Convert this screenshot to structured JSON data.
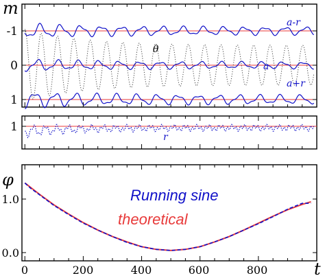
{
  "colors": {
    "primary": "#1010c8",
    "reference": "#e83a3a",
    "theta_curve": "#444444",
    "axes": "#000000",
    "background": "#ffffff"
  },
  "chart_data": [
    {
      "type": "line",
      "panel": "top",
      "ylabel": "m",
      "xlim": [
        -10,
        1000
      ],
      "ylim": [
        1.25,
        -1.25
      ],
      "y_inverted": true,
      "y_ticks": [
        -1,
        0,
        1
      ],
      "y_tick_labels": [
        "-1",
        "0",
        "1"
      ],
      "reference_lines_y": [
        -1,
        0,
        1
      ],
      "annotations": [
        "a-r",
        "θ",
        "a",
        "a+r"
      ],
      "series": [
        {
          "name": "a-r",
          "style": "solid",
          "color": "#1010c8",
          "baseline": -1,
          "amplitude": 0.18,
          "period": 70
        },
        {
          "name": "a",
          "style": "solid",
          "color": "#1010c8",
          "baseline": 0,
          "amplitude": 0.15,
          "period": 70
        },
        {
          "name": "a+r",
          "style": "solid",
          "color": "#1010c8",
          "baseline": 1,
          "amplitude": 0.2,
          "period": 70
        },
        {
          "name": "θ",
          "style": "dotted",
          "color": "#444444",
          "baseline": 0,
          "amplitude": 1.05,
          "period": 56
        }
      ]
    },
    {
      "type": "line",
      "panel": "middle",
      "ylim": [
        0.5,
        1.25
      ],
      "y_ticks": [
        1
      ],
      "y_tick_labels": [
        "1"
      ],
      "reference_lines_y": [
        1
      ],
      "annotations": [
        "r"
      ],
      "series": [
        {
          "name": "r",
          "style": "dotted",
          "color": "#1010c8",
          "baseline": 1,
          "amplitude": 0.12,
          "period": 40
        }
      ]
    },
    {
      "type": "line",
      "panel": "bottom",
      "ylabel": "φ",
      "xlabel": "t",
      "xlim": [
        -10,
        1000
      ],
      "ylim": [
        -0.1,
        1.45
      ],
      "x_ticks": [
        0,
        200,
        400,
        600,
        800
      ],
      "x_tick_labels": [
        "0",
        "200",
        "400",
        "600",
        "800"
      ],
      "y_ticks": [
        0,
        1
      ],
      "y_tick_labels": [
        "0.0",
        "1.0"
      ],
      "legend_labels": [
        "Running sine",
        "theoretical"
      ],
      "series": [
        {
          "name": "Running sine",
          "color": "#1010c8",
          "x": [
            0,
            20,
            40,
            60,
            80,
            100,
            150,
            200,
            250,
            300,
            350,
            400,
            450,
            500,
            550,
            600,
            650,
            700,
            750,
            800,
            850,
            900,
            950,
            980
          ],
          "y": [
            1.3,
            1.2,
            1.12,
            1.04,
            0.96,
            0.88,
            0.71,
            0.55,
            0.42,
            0.3,
            0.19,
            0.11,
            0.06,
            0.04,
            0.06,
            0.11,
            0.2,
            0.3,
            0.42,
            0.54,
            0.67,
            0.81,
            0.92,
            0.92
          ]
        },
        {
          "name": "theoretical",
          "color": "#e83a3a",
          "x": [
            0,
            50,
            100,
            150,
            200,
            250,
            300,
            350,
            400,
            450,
            500,
            550,
            600,
            650,
            700,
            750,
            800,
            850,
            900,
            950,
            980
          ],
          "y": [
            1.3,
            1.09,
            0.89,
            0.72,
            0.56,
            0.42,
            0.3,
            0.2,
            0.11,
            0.06,
            0.04,
            0.06,
            0.11,
            0.2,
            0.3,
            0.42,
            0.55,
            0.68,
            0.8,
            0.9,
            0.95
          ]
        }
      ]
    }
  ]
}
